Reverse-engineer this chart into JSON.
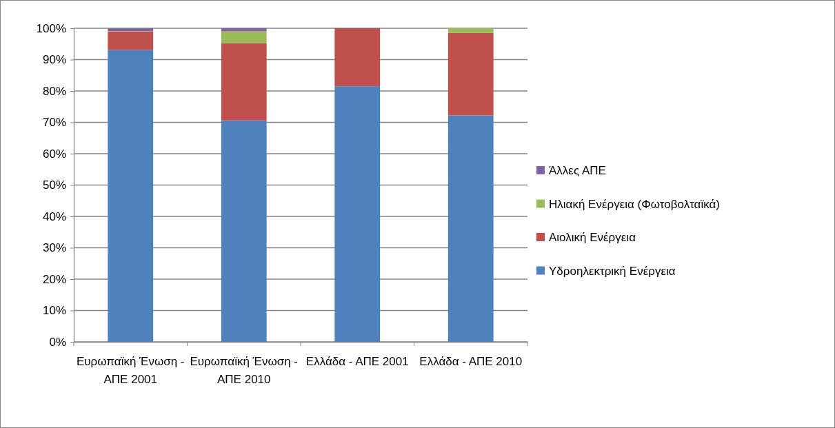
{
  "chart_data": {
    "type": "bar",
    "stacked": true,
    "categories": [
      "Ευρωπαϊκή Ένωση - ΑΠΕ 2001",
      "Ευρωπαϊκή Ένωση - ΑΠΕ 2010",
      "Ελλάδα - ΑΠΕ 2001",
      "Ελλάδα - ΑΠΕ 2010"
    ],
    "series": [
      {
        "name": "Υδροηλεκτρική Ενέργεια",
        "color": "#4f81bd",
        "values": [
          93.1,
          70.6,
          81.5,
          72.2
        ]
      },
      {
        "name": "Αιολική Ενέργεια",
        "color": "#c0504d",
        "values": [
          5.9,
          24.6,
          18.5,
          26.3
        ]
      },
      {
        "name": "Ηλιακή Ενέργεια (Φωτοβολταϊκά)",
        "color": "#9bbb59",
        "values": [
          0.1,
          3.8,
          0,
          1.5
        ]
      },
      {
        "name": "Άλλες ΑΠΕ",
        "color": "#8064a2",
        "values": [
          0.9,
          1.0,
          0,
          0
        ]
      }
    ],
    "ylim": [
      0,
      100
    ],
    "yticks": [
      {
        "value": 0,
        "label": "0%"
      },
      {
        "value": 10,
        "label": "10%"
      },
      {
        "value": 20,
        "label": "20%"
      },
      {
        "value": 30,
        "label": "30%"
      },
      {
        "value": 40,
        "label": "40%"
      },
      {
        "value": 50,
        "label": "50%"
      },
      {
        "value": 60,
        "label": "60%"
      },
      {
        "value": 70,
        "label": "70%"
      },
      {
        "value": 80,
        "label": "80%"
      },
      {
        "value": 90,
        "label": "90%"
      },
      {
        "value": 100,
        "label": "100%"
      }
    ],
    "grid": "y",
    "legend": "right"
  }
}
